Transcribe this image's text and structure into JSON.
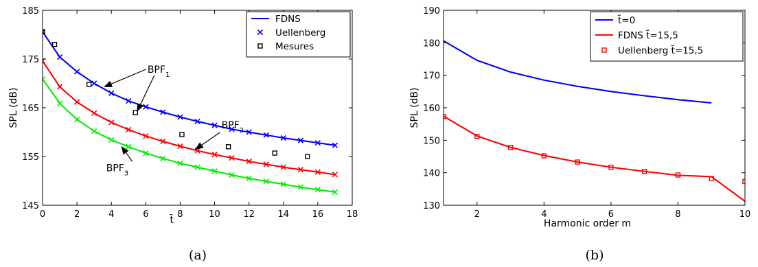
{
  "chart_data": [
    {
      "type": "line",
      "panel_label": "(a)",
      "xlabel": "t̃",
      "ylabel": "SPL (dB)",
      "xlim": [
        0,
        18
      ],
      "ylim": [
        145,
        185
      ],
      "xticks": [
        0,
        2,
        4,
        6,
        8,
        10,
        12,
        14,
        16,
        18
      ],
      "yticks": [
        145,
        155,
        165,
        175,
        185
      ],
      "grid": false,
      "legend_position": "top-right",
      "legend": [
        {
          "label": "FDNS",
          "style": "line",
          "color": "#0000ff"
        },
        {
          "label": "Uellenberg",
          "style": "x",
          "color": "#0000ff"
        },
        {
          "label": "Mesures",
          "style": "square",
          "color": "#000000"
        }
      ],
      "series": [
        {
          "name": "BPF_1",
          "color": "#0000ff",
          "x": [
            0,
            1,
            2,
            3,
            4,
            5,
            6,
            7,
            8,
            9,
            10,
            11,
            12,
            13,
            14,
            15,
            16,
            17
          ],
          "y": [
            180.6,
            175.4,
            172.4,
            170.0,
            168.0,
            166.4,
            165.2,
            164.1,
            163.1,
            162.2,
            161.4,
            160.6,
            160.0,
            159.4,
            158.8,
            158.3,
            157.8,
            157.3
          ]
        },
        {
          "name": "BPF_2",
          "color": "#ff0000",
          "x": [
            0,
            1,
            2,
            3,
            4,
            5,
            6,
            7,
            8,
            9,
            10,
            11,
            12,
            13,
            14,
            15,
            16,
            17
          ],
          "y": [
            174.6,
            169.3,
            166.2,
            163.9,
            162.0,
            160.5,
            159.2,
            158.1,
            157.1,
            156.2,
            155.4,
            154.7,
            154.0,
            153.4,
            152.8,
            152.3,
            151.8,
            151.3
          ]
        },
        {
          "name": "BPF_3",
          "color": "#00ee00",
          "x": [
            0,
            1,
            2,
            3,
            4,
            5,
            6,
            7,
            8,
            9,
            10,
            11,
            12,
            13,
            14,
            15,
            16,
            17
          ],
          "y": [
            170.9,
            165.9,
            162.6,
            160.2,
            158.4,
            157.0,
            155.7,
            154.6,
            153.6,
            152.8,
            152.0,
            151.2,
            150.5,
            149.9,
            149.3,
            148.7,
            148.2,
            147.7
          ]
        }
      ],
      "measurements": {
        "name": "Mesures",
        "x": [
          0,
          0.7,
          2.7,
          5.4,
          8.1,
          10.8,
          13.5,
          15.4
        ],
        "y": [
          180.6,
          178.0,
          169.8,
          164.0,
          159.5,
          157.0,
          155.7,
          155.0
        ]
      },
      "annotations": [
        {
          "base": "BPF",
          "sub": "1",
          "x": 6.1,
          "y": 172.2,
          "arrow_to": [
            3.6,
            169.3
          ]
        },
        {
          "base": "BPF",
          "sub": "1",
          "x": 6.1,
          "y": 172.2,
          "arrow_to": [
            5.5,
            164.3
          ]
        },
        {
          "base": "BPF",
          "sub": "2",
          "x": 10.4,
          "y": 160.8,
          "arrow_to": [
            8.9,
            156.5
          ]
        },
        {
          "base": "BPF",
          "sub": "3",
          "x": 3.7,
          "y": 152.0,
          "arrow_to": [
            4.6,
            157.0
          ]
        }
      ]
    },
    {
      "type": "line",
      "panel_label": "(b)",
      "xlabel": "Harmonic order  m",
      "ylabel": "SPL (dB)",
      "xlim": [
        1,
        10
      ],
      "ylim": [
        130,
        190
      ],
      "xticks": [
        2,
        4,
        6,
        8,
        10
      ],
      "yticks": [
        130,
        140,
        150,
        160,
        170,
        180,
        190
      ],
      "grid": false,
      "legend_position": "top-right",
      "legend": [
        {
          "label": "t̃=0",
          "style": "line",
          "color": "#0000ff"
        },
        {
          "label": "FDNS t̃=15,5",
          "style": "line",
          "color": "#ff0000"
        },
        {
          "label": "Uellenberg t̃=15,5",
          "style": "square",
          "color": "#ff0000"
        }
      ],
      "series": [
        {
          "name": "t̃=0",
          "color": "#0000ff",
          "x": [
            1,
            2,
            3,
            4,
            5,
            6,
            7,
            8,
            9
          ],
          "y": [
            180.6,
            174.6,
            171.0,
            168.5,
            166.6,
            165.0,
            163.7,
            162.5,
            161.5
          ]
        },
        {
          "name": "FDNS t̃=15,5",
          "color": "#ff0000",
          "x": [
            1,
            2,
            3,
            4,
            5,
            6,
            7,
            8,
            9,
            10
          ],
          "y": [
            157.4,
            151.3,
            147.8,
            145.3,
            143.3,
            141.7,
            140.4,
            139.2,
            138.8,
            131.2
          ]
        }
      ],
      "markers": {
        "name": "Uellenberg t̃=15,5",
        "color": "#ff0000",
        "x": [
          1,
          2,
          3,
          4,
          5,
          6,
          7,
          8,
          9,
          10
        ],
        "y": [
          157.3,
          151.2,
          147.8,
          145.2,
          143.3,
          141.7,
          140.4,
          139.3,
          138.2,
          137.3
        ]
      }
    }
  ]
}
